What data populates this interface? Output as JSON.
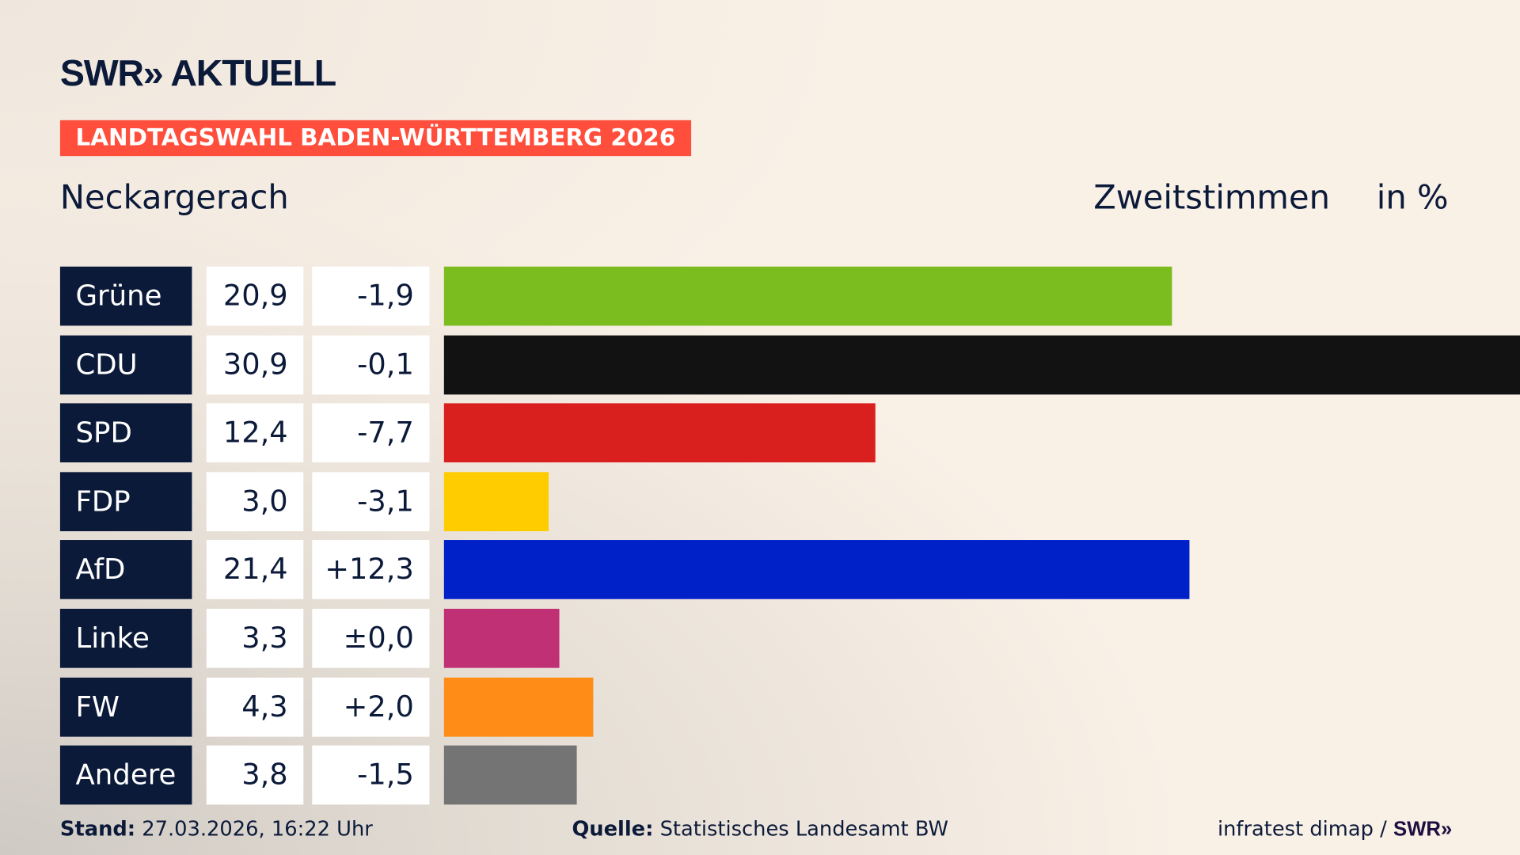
{
  "header": {
    "logo": "SWR» AKTUELL",
    "banner": "LANDTAGSWAHL BADEN-WÜRTTEMBERG 2026",
    "place": "Neckargerach",
    "vote_type": "Zweitstimmen",
    "unit": "in %"
  },
  "chart_data": {
    "type": "bar",
    "orientation": "horizontal",
    "title": "Neckargerach",
    "subtitle": "Zweitstimmen in %",
    "categories": [
      "Grüne",
      "CDU",
      "SPD",
      "FDP",
      "AfD",
      "Linke",
      "FW",
      "Andere"
    ],
    "values": [
      20.9,
      30.9,
      12.4,
      3.0,
      21.4,
      3.3,
      4.3,
      3.8
    ],
    "values_label": [
      "20,9",
      "30,9",
      "12,4",
      "3,0",
      "21,4",
      "3,3",
      "4,3",
      "3,8"
    ],
    "diff": [
      -1.9,
      -0.1,
      -7.7,
      -3.1,
      12.3,
      0.0,
      2.0,
      -1.5
    ],
    "diff_label": [
      "-1,9",
      "-0,1",
      "-7,7",
      "-3,1",
      "+12,3",
      "±0,0",
      "+2,0",
      "-1,5"
    ],
    "colors": [
      "#7bbd1e",
      "#121212",
      "#d9201e",
      "#ffcc00",
      "#0020c8",
      "#bf3075",
      "#ff8c17",
      "#747474"
    ],
    "xlim": [
      0,
      30.9
    ]
  },
  "footer": {
    "stand_label": "Stand:",
    "stand_value": "27.03.2026, 16:22 Uhr",
    "source_label": "Quelle:",
    "source_value": "Statistisches Landesamt BW",
    "credit": "infratest dimap / ",
    "credit_logo": "SWR»"
  }
}
